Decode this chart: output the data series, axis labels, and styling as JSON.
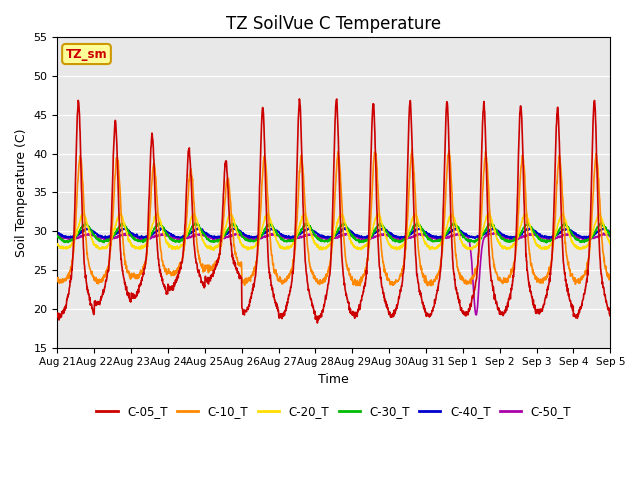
{
  "title": "TZ SoilVue C Temperature",
  "xlabel": "Time",
  "ylabel": "Soil Temperature (C)",
  "ylim": [
    15,
    55
  ],
  "yticks": [
    15,
    20,
    25,
    30,
    35,
    40,
    45,
    50,
    55
  ],
  "plot_bg_color": "#e8e8e8",
  "series": {
    "C-05_T": {
      "color": "#cc0000",
      "lw": 1.2
    },
    "C-10_T": {
      "color": "#ff8800",
      "lw": 1.2
    },
    "C-20_T": {
      "color": "#ffdd00",
      "lw": 1.2
    },
    "C-30_T": {
      "color": "#00bb00",
      "lw": 1.2
    },
    "C-40_T": {
      "color": "#0000cc",
      "lw": 1.2
    },
    "C-50_T": {
      "color": "#aa00aa",
      "lw": 1.2
    }
  },
  "annotation_text": "TZ_sm",
  "annotation_color": "#cc0000",
  "annotation_bg": "#ffff99",
  "annotation_border": "#cc9900",
  "start_day": 21,
  "n_days": 15
}
